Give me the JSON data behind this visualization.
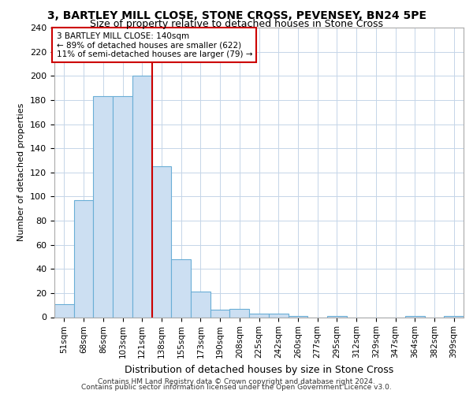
{
  "title": "3, BARTLEY MILL CLOSE, STONE CROSS, PEVENSEY, BN24 5PE",
  "subtitle": "Size of property relative to detached houses in Stone Cross",
  "xlabel": "Distribution of detached houses by size in Stone Cross",
  "ylabel": "Number of detached properties",
  "bins": [
    "51sqm",
    "68sqm",
    "86sqm",
    "103sqm",
    "121sqm",
    "138sqm",
    "155sqm",
    "173sqm",
    "190sqm",
    "208sqm",
    "225sqm",
    "242sqm",
    "260sqm",
    "277sqm",
    "295sqm",
    "312sqm",
    "329sqm",
    "347sqm",
    "364sqm",
    "382sqm",
    "399sqm"
  ],
  "values": [
    11,
    97,
    183,
    183,
    200,
    125,
    48,
    21,
    6,
    7,
    3,
    3,
    1,
    0,
    1,
    0,
    0,
    0,
    1,
    0,
    1
  ],
  "bar_color": "#ccdff2",
  "bar_edge_color": "#6aaed6",
  "vline_color": "#cc0000",
  "vline_pos": 4.5,
  "annotation_title": "3 BARTLEY MILL CLOSE: 140sqm",
  "annotation_line1": "← 89% of detached houses are smaller (622)",
  "annotation_line2": "11% of semi-detached houses are larger (79) →",
  "annotation_box_color": "#cc0000",
  "ylim": [
    0,
    240
  ],
  "yticks": [
    0,
    20,
    40,
    60,
    80,
    100,
    120,
    140,
    160,
    180,
    200,
    220,
    240
  ],
  "footer1": "Contains HM Land Registry data © Crown copyright and database right 2024.",
  "footer2": "Contains public sector information licensed under the Open Government Licence v3.0.",
  "plot_bg_color": "#ffffff",
  "grid_color": "#c5d5e8"
}
